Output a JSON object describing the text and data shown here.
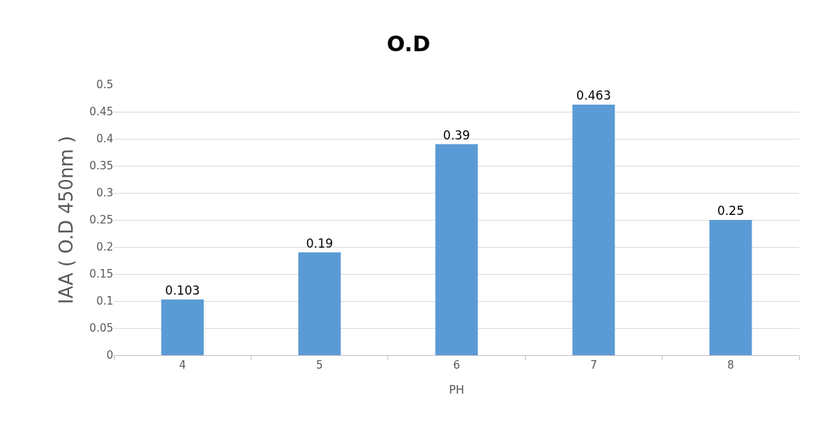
{
  "chart_data": {
    "type": "bar",
    "title": "O.D",
    "xlabel": "PH",
    "ylabel": "IAA ( O.D 450nm )",
    "categories": [
      "4",
      "5",
      "6",
      "7",
      "8"
    ],
    "values": [
      0.103,
      0.19,
      0.39,
      0.463,
      0.25
    ],
    "color": "#5b9bd5",
    "ylim": [
      0,
      0.5
    ],
    "yticks": [
      0,
      0.05,
      0.1,
      0.15,
      0.2,
      0.25,
      0.3,
      0.35,
      0.4,
      0.45,
      0.5
    ],
    "grid": "y",
    "data_labels": true,
    "legend": false
  }
}
